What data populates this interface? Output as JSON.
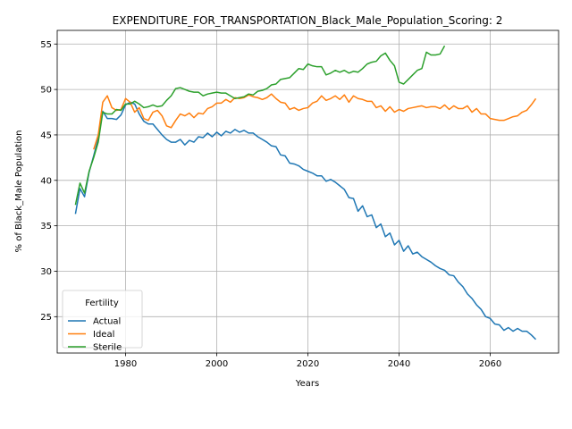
{
  "chart_data": {
    "type": "line",
    "title": "EXPENDITURE_FOR_TRANSPORTATION_Black_Male_Population_Scoring: 2",
    "xlabel": "Years",
    "ylabel": "% of Black_Male Population",
    "xlim": [
      1965,
      2075
    ],
    "ylim": [
      21,
      56.5
    ],
    "xticks": [
      1980,
      2000,
      2020,
      2040,
      2060
    ],
    "yticks": [
      25,
      30,
      35,
      40,
      45,
      50,
      55
    ],
    "grid": true,
    "legend": {
      "title": "Fertility",
      "placement": "lower-left"
    },
    "series": [
      {
        "name": "Actual",
        "color": "#1f77b4",
        "points": [
          [
            1969,
            36.3
          ],
          [
            1970,
            39.1
          ],
          [
            1971,
            38.2
          ],
          [
            1972,
            40.9
          ],
          [
            1973,
            42.7
          ],
          [
            1974,
            44.6
          ],
          [
            1975,
            47.6
          ],
          [
            1976,
            46.8
          ],
          [
            1977,
            46.8
          ],
          [
            1978,
            46.7
          ],
          [
            1979,
            47.2
          ],
          [
            1980,
            48.3
          ],
          [
            1981,
            48.6
          ],
          [
            1982,
            48.4
          ],
          [
            1983,
            47.3
          ],
          [
            1984,
            46.5
          ],
          [
            1985,
            46.2
          ],
          [
            1986,
            46.2
          ],
          [
            1987,
            45.6
          ],
          [
            1988,
            45.0
          ],
          [
            1989,
            44.5
          ],
          [
            1990,
            44.2
          ],
          [
            1991,
            44.2
          ],
          [
            1992,
            44.5
          ],
          [
            1993,
            43.9
          ],
          [
            1994,
            44.4
          ],
          [
            1995,
            44.2
          ],
          [
            1996,
            44.8
          ],
          [
            1997,
            44.7
          ],
          [
            1998,
            45.2
          ],
          [
            1999,
            44.8
          ],
          [
            2000,
            45.3
          ],
          [
            2001,
            44.9
          ],
          [
            2002,
            45.4
          ],
          [
            2003,
            45.2
          ],
          [
            2004,
            45.6
          ],
          [
            2005,
            45.3
          ],
          [
            2006,
            45.5
          ],
          [
            2007,
            45.2
          ],
          [
            2008,
            45.2
          ],
          [
            2009,
            44.8
          ],
          [
            2010,
            44.5
          ],
          [
            2011,
            44.2
          ],
          [
            2012,
            43.8
          ],
          [
            2013,
            43.7
          ],
          [
            2014,
            42.8
          ],
          [
            2015,
            42.7
          ],
          [
            2016,
            41.9
          ],
          [
            2017,
            41.8
          ],
          [
            2018,
            41.6
          ],
          [
            2019,
            41.2
          ],
          [
            2020,
            41.0
          ],
          [
            2021,
            40.8
          ],
          [
            2022,
            40.5
          ],
          [
            2023,
            40.5
          ],
          [
            2024,
            39.9
          ],
          [
            2025,
            40.1
          ],
          [
            2026,
            39.8
          ],
          [
            2027,
            39.4
          ],
          [
            2028,
            39.0
          ],
          [
            2029,
            38.1
          ],
          [
            2030,
            38.0
          ],
          [
            2031,
            36.6
          ],
          [
            2032,
            37.2
          ],
          [
            2033,
            36.0
          ],
          [
            2034,
            36.2
          ],
          [
            2035,
            34.8
          ],
          [
            2036,
            35.2
          ],
          [
            2037,
            33.8
          ],
          [
            2038,
            34.2
          ],
          [
            2039,
            32.9
          ],
          [
            2040,
            33.4
          ],
          [
            2041,
            32.2
          ],
          [
            2042,
            32.8
          ],
          [
            2043,
            31.9
          ],
          [
            2044,
            32.1
          ],
          [
            2045,
            31.6
          ],
          [
            2046,
            31.3
          ],
          [
            2047,
            31.0
          ],
          [
            2048,
            30.6
          ],
          [
            2049,
            30.3
          ],
          [
            2050,
            30.1
          ],
          [
            2051,
            29.6
          ],
          [
            2052,
            29.5
          ],
          [
            2053,
            28.8
          ],
          [
            2054,
            28.3
          ],
          [
            2055,
            27.5
          ],
          [
            2056,
            27.0
          ],
          [
            2057,
            26.3
          ],
          [
            2058,
            25.8
          ],
          [
            2059,
            25.0
          ],
          [
            2060,
            24.8
          ],
          [
            2061,
            24.2
          ],
          [
            2062,
            24.1
          ],
          [
            2063,
            23.5
          ],
          [
            2064,
            23.8
          ],
          [
            2065,
            23.4
          ],
          [
            2066,
            23.7
          ],
          [
            2067,
            23.4
          ],
          [
            2068,
            23.4
          ],
          [
            2069,
            23.0
          ],
          [
            2070,
            22.5
          ]
        ]
      },
      {
        "name": "Ideal",
        "color": "#ff7f0e",
        "points": [
          [
            1973,
            43.4
          ],
          [
            1974,
            45.0
          ],
          [
            1975,
            48.6
          ],
          [
            1976,
            49.3
          ],
          [
            1977,
            48.0
          ],
          [
            1978,
            47.7
          ],
          [
            1979,
            47.8
          ],
          [
            1980,
            49.0
          ],
          [
            1981,
            48.6
          ],
          [
            1982,
            47.5
          ],
          [
            1983,
            48.0
          ],
          [
            1984,
            46.8
          ],
          [
            1985,
            46.6
          ],
          [
            1986,
            47.5
          ],
          [
            1987,
            47.7
          ],
          [
            1988,
            47.1
          ],
          [
            1989,
            46.0
          ],
          [
            1990,
            45.8
          ],
          [
            1991,
            46.6
          ],
          [
            1992,
            47.3
          ],
          [
            1993,
            47.1
          ],
          [
            1994,
            47.4
          ],
          [
            1995,
            46.9
          ],
          [
            1996,
            47.4
          ],
          [
            1997,
            47.3
          ],
          [
            1998,
            47.9
          ],
          [
            1999,
            48.1
          ],
          [
            2000,
            48.5
          ],
          [
            2001,
            48.5
          ],
          [
            2002,
            48.9
          ],
          [
            2003,
            48.6
          ],
          [
            2004,
            49.1
          ],
          [
            2005,
            49.0
          ],
          [
            2006,
            49.1
          ],
          [
            2007,
            49.4
          ],
          [
            2008,
            49.2
          ],
          [
            2009,
            49.1
          ],
          [
            2010,
            48.9
          ],
          [
            2011,
            49.1
          ],
          [
            2012,
            49.5
          ],
          [
            2013,
            49.0
          ],
          [
            2014,
            48.6
          ],
          [
            2015,
            48.5
          ],
          [
            2016,
            47.8
          ],
          [
            2017,
            48.0
          ],
          [
            2018,
            47.7
          ],
          [
            2019,
            47.9
          ],
          [
            2020,
            48.0
          ],
          [
            2021,
            48.5
          ],
          [
            2022,
            48.7
          ],
          [
            2023,
            49.3
          ],
          [
            2024,
            48.8
          ],
          [
            2025,
            49.0
          ],
          [
            2026,
            49.3
          ],
          [
            2027,
            48.9
          ],
          [
            2028,
            49.4
          ],
          [
            2029,
            48.6
          ],
          [
            2030,
            49.3
          ],
          [
            2031,
            49.0
          ],
          [
            2032,
            48.9
          ],
          [
            2033,
            48.7
          ],
          [
            2034,
            48.7
          ],
          [
            2035,
            48.0
          ],
          [
            2036,
            48.2
          ],
          [
            2037,
            47.6
          ],
          [
            2038,
            48.1
          ],
          [
            2039,
            47.5
          ],
          [
            2040,
            47.8
          ],
          [
            2041,
            47.6
          ],
          [
            2042,
            47.9
          ],
          [
            2043,
            48.0
          ],
          [
            2044,
            48.1
          ],
          [
            2045,
            48.2
          ],
          [
            2046,
            48.0
          ],
          [
            2047,
            48.1
          ],
          [
            2048,
            48.1
          ],
          [
            2049,
            47.9
          ],
          [
            2050,
            48.3
          ],
          [
            2051,
            47.8
          ],
          [
            2052,
            48.2
          ],
          [
            2053,
            47.9
          ],
          [
            2054,
            47.9
          ],
          [
            2055,
            48.2
          ],
          [
            2056,
            47.5
          ],
          [
            2057,
            47.9
          ],
          [
            2058,
            47.3
          ],
          [
            2059,
            47.3
          ],
          [
            2060,
            46.8
          ],
          [
            2061,
            46.7
          ],
          [
            2062,
            46.6
          ],
          [
            2063,
            46.6
          ],
          [
            2064,
            46.8
          ],
          [
            2065,
            47.0
          ],
          [
            2066,
            47.1
          ],
          [
            2067,
            47.5
          ],
          [
            2068,
            47.7
          ],
          [
            2069,
            48.3
          ],
          [
            2070,
            49.0
          ]
        ]
      },
      {
        "name": "Sterile",
        "color": "#2ca02c",
        "points": [
          [
            1969,
            37.3
          ],
          [
            1970,
            39.7
          ],
          [
            1971,
            38.6
          ],
          [
            1972,
            41.0
          ],
          [
            1973,
            42.5
          ],
          [
            1974,
            44.2
          ],
          [
            1975,
            47.5
          ],
          [
            1976,
            47.3
          ],
          [
            1977,
            47.3
          ],
          [
            1978,
            47.8
          ],
          [
            1979,
            47.7
          ],
          [
            1980,
            48.4
          ],
          [
            1981,
            48.4
          ],
          [
            1982,
            48.7
          ],
          [
            1983,
            48.4
          ],
          [
            1984,
            48.0
          ],
          [
            1985,
            48.1
          ],
          [
            1986,
            48.3
          ],
          [
            1987,
            48.1
          ],
          [
            1988,
            48.2
          ],
          [
            1989,
            48.8
          ],
          [
            1990,
            49.3
          ],
          [
            1991,
            50.1
          ],
          [
            1992,
            50.2
          ],
          [
            1993,
            50.0
          ],
          [
            1994,
            49.8
          ],
          [
            1995,
            49.7
          ],
          [
            1996,
            49.7
          ],
          [
            1997,
            49.3
          ],
          [
            1998,
            49.5
          ],
          [
            1999,
            49.6
          ],
          [
            2000,
            49.7
          ],
          [
            2001,
            49.6
          ],
          [
            2002,
            49.6
          ],
          [
            2003,
            49.3
          ],
          [
            2004,
            49.0
          ],
          [
            2005,
            49.1
          ],
          [
            2006,
            49.2
          ],
          [
            2007,
            49.5
          ],
          [
            2008,
            49.4
          ],
          [
            2009,
            49.8
          ],
          [
            2010,
            49.9
          ],
          [
            2011,
            50.1
          ],
          [
            2012,
            50.5
          ],
          [
            2013,
            50.6
          ],
          [
            2014,
            51.1
          ],
          [
            2015,
            51.2
          ],
          [
            2016,
            51.3
          ],
          [
            2017,
            51.8
          ],
          [
            2018,
            52.3
          ],
          [
            2019,
            52.2
          ],
          [
            2020,
            52.8
          ],
          [
            2021,
            52.6
          ],
          [
            2022,
            52.5
          ],
          [
            2023,
            52.5
          ],
          [
            2024,
            51.6
          ],
          [
            2025,
            51.8
          ],
          [
            2026,
            52.1
          ],
          [
            2027,
            51.9
          ],
          [
            2028,
            52.1
          ],
          [
            2029,
            51.8
          ],
          [
            2030,
            52.0
          ],
          [
            2031,
            51.9
          ],
          [
            2032,
            52.3
          ],
          [
            2033,
            52.8
          ],
          [
            2034,
            53.0
          ],
          [
            2035,
            53.1
          ],
          [
            2036,
            53.7
          ],
          [
            2037,
            54.0
          ],
          [
            2038,
            53.2
          ],
          [
            2039,
            52.6
          ],
          [
            2040,
            50.8
          ],
          [
            2041,
            50.6
          ],
          [
            2042,
            51.1
          ],
          [
            2043,
            51.6
          ],
          [
            2044,
            52.1
          ],
          [
            2045,
            52.3
          ],
          [
            2046,
            54.1
          ],
          [
            2047,
            53.8
          ],
          [
            2048,
            53.8
          ],
          [
            2049,
            53.9
          ],
          [
            2050,
            54.8
          ]
        ]
      }
    ]
  }
}
